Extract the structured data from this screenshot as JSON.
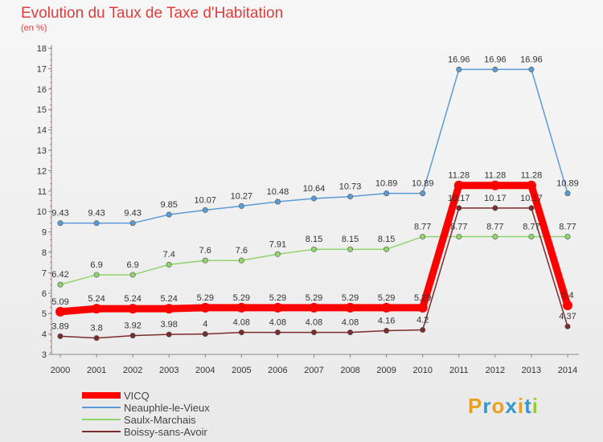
{
  "chart_data": {
    "type": "line",
    "title": "Evolution du Taux de Taxe d'Habitation",
    "subtitle": "(en %)",
    "x": [
      "2000",
      "2001",
      "2002",
      "2003",
      "2004",
      "2005",
      "2006",
      "2007",
      "2008",
      "2009",
      "2010",
      "2011",
      "2012",
      "2013",
      "2014"
    ],
    "ylim": [
      3,
      18
    ],
    "yticks": [
      3,
      4,
      5,
      6,
      7,
      8,
      9,
      10,
      11,
      12,
      13,
      14,
      15,
      16,
      17,
      18
    ],
    "grid": false,
    "legend_position": "bottom-left",
    "series": [
      {
        "name": "VICQ",
        "color": "#ff0000",
        "values": [
          5.09,
          5.24,
          5.24,
          5.24,
          5.29,
          5.29,
          5.29,
          5.29,
          5.29,
          5.29,
          5.29,
          11.28,
          11.28,
          11.28,
          5.4
        ],
        "labels": [
          "5.09",
          "5.24",
          "5.24",
          "5.24",
          "5.29",
          "5.29",
          "5.29",
          "5.29",
          "5.29",
          "5.29",
          "5.29",
          "11.28",
          "11.28",
          "11.28",
          "5.4"
        ]
      },
      {
        "name": "Neauphle-le-Vieux",
        "color": "#5b9bd5",
        "values": [
          9.43,
          9.43,
          9.43,
          9.85,
          10.07,
          10.27,
          10.48,
          10.64,
          10.73,
          10.89,
          10.89,
          16.96,
          16.96,
          16.96,
          10.89
        ],
        "labels": [
          "9.43",
          "9.43",
          "9.43",
          "9.85",
          "10.07",
          "10.27",
          "10.48",
          "10.64",
          "10.73",
          "10.89",
          "10.89",
          "16.96",
          "16.96",
          "16.96",
          "10.89"
        ]
      },
      {
        "name": "Saulx-Marchais",
        "color": "#90d46c",
        "values": [
          6.42,
          6.9,
          6.9,
          7.4,
          7.6,
          7.6,
          7.91,
          8.15,
          8.15,
          8.15,
          8.77,
          8.77,
          8.77,
          8.77,
          8.77
        ],
        "labels": [
          "6.42",
          "6.9",
          "6.9",
          "7.4",
          "7.6",
          "7.6",
          "7.91",
          "8.15",
          "8.15",
          "8.15",
          "8.77",
          "8.77",
          "8.77",
          "8.77",
          "8.77"
        ]
      },
      {
        "name": "Boissy-sans-Avoir",
        "color": "#7a2b2b",
        "values": [
          3.89,
          3.8,
          3.92,
          3.98,
          4,
          4.08,
          4.08,
          4.08,
          4.08,
          4.16,
          4.2,
          10.17,
          10.17,
          10.17,
          4.37
        ],
        "labels": [
          "3.89",
          "3.8",
          "3.92",
          "3.98",
          "4",
          "4.08",
          "4.08",
          "4.08",
          "4.08",
          "4.16",
          "4.2",
          "10.17",
          "10.17",
          "10.17",
          "4.37"
        ]
      }
    ]
  },
  "logo": {
    "text": "Proxiti",
    "colors": [
      "#e8a020",
      "#3399cc",
      "#e8a020",
      "#3399cc",
      "#e8a020",
      "#3399cc",
      "#99cc33"
    ]
  }
}
